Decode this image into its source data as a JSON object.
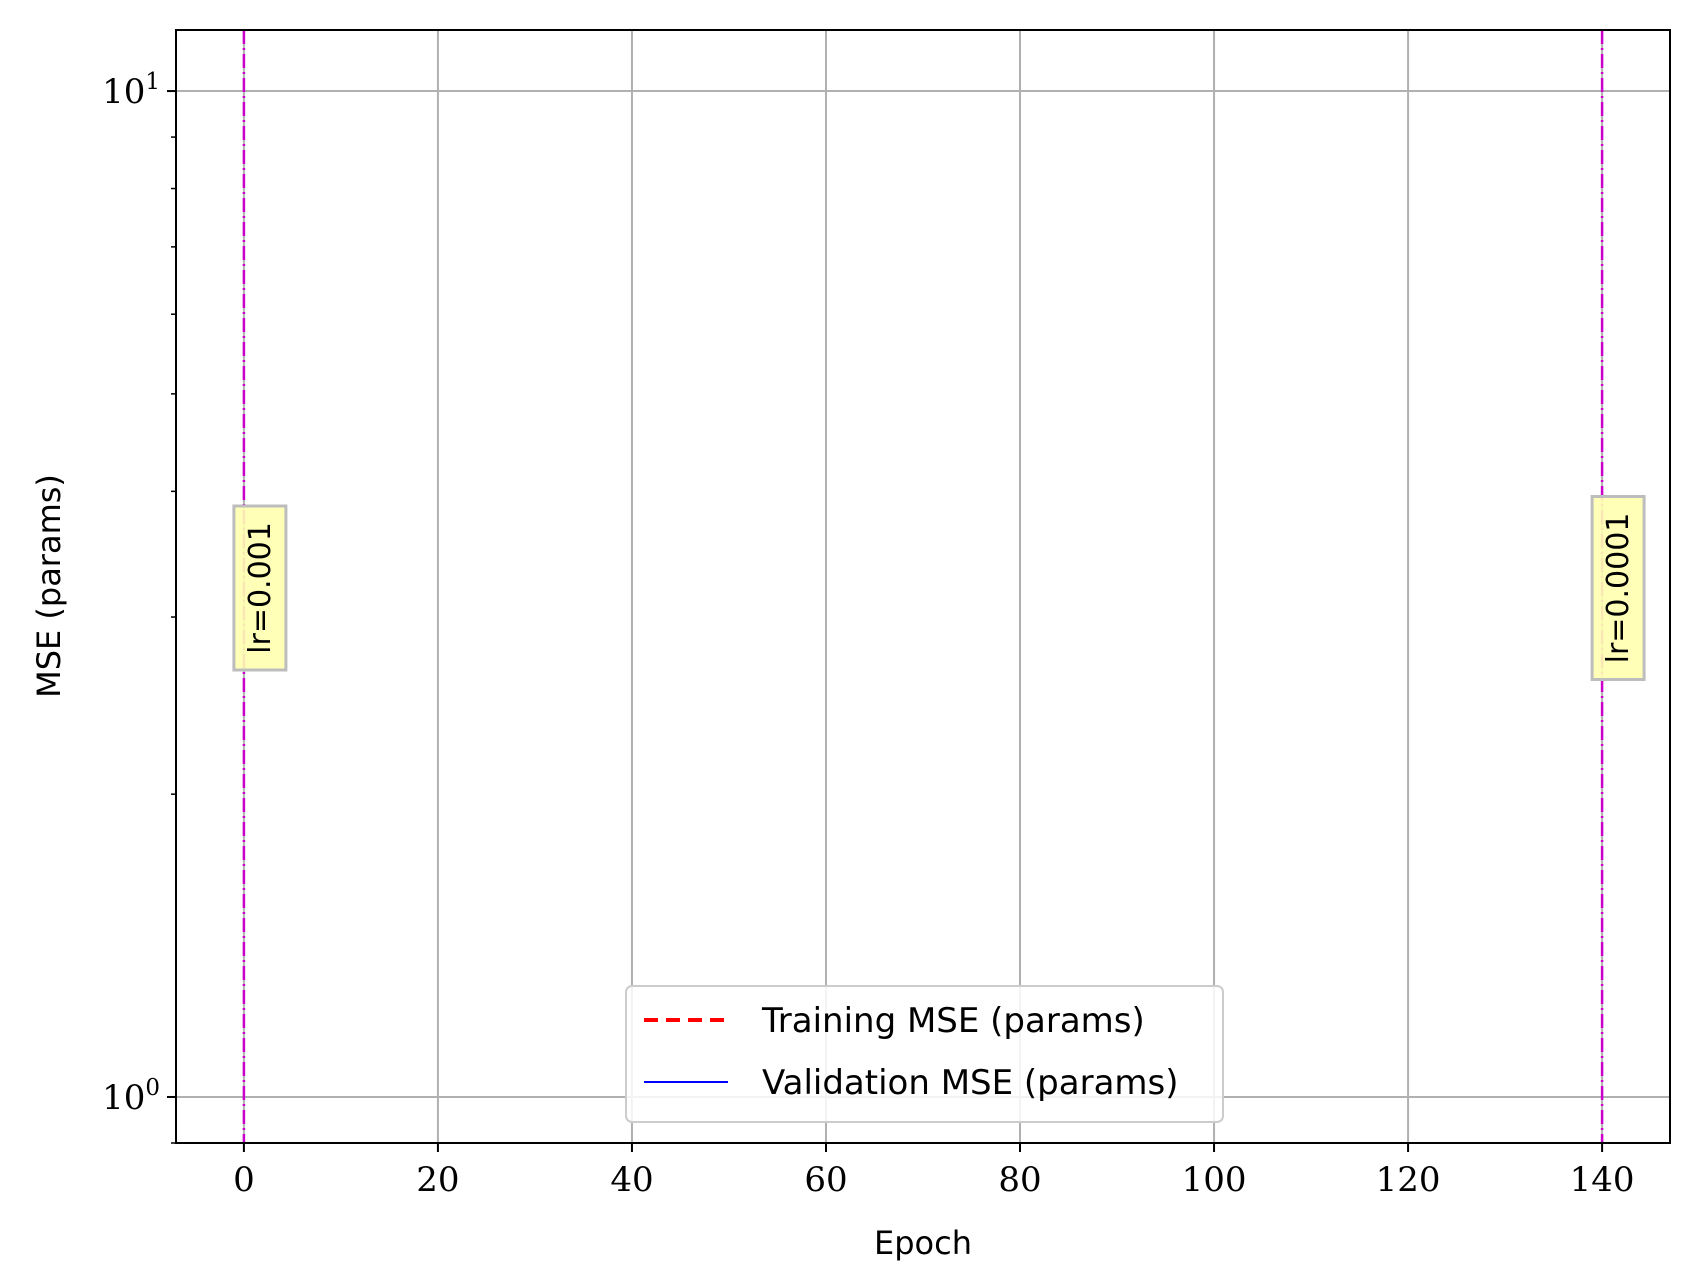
{
  "chart_data": {
    "type": "line",
    "xlabel": "Epoch",
    "ylabel": "MSE (params)",
    "xlim": [
      -7,
      147
    ],
    "ylim": [
      0.9,
      11.5
    ],
    "yscale": "log",
    "xticks": [
      0,
      20,
      40,
      60,
      80,
      100,
      120,
      140
    ],
    "xtick_labels": [
      "0",
      "20",
      "40",
      "60",
      "80",
      "100",
      "120",
      "140"
    ],
    "yticks_major": [
      {
        "value": 1,
        "base": "10",
        "exp": "0"
      },
      {
        "value": 10,
        "base": "10",
        "exp": "1"
      }
    ],
    "grid": true,
    "series": [
      {
        "name": "Training MSE (params)",
        "color": "#ff0000",
        "style": "dashed",
        "x": [],
        "y": []
      },
      {
        "name": "Validation MSE (params)",
        "color": "#0000ff",
        "style": "solid",
        "x": [],
        "y": []
      }
    ],
    "lr_markers": [
      {
        "epoch": 0,
        "label": "lr=0.001",
        "color": "#cc00cc"
      },
      {
        "epoch": 140,
        "label": "lr=0.0001",
        "color": "#cc00cc"
      }
    ],
    "legend_position": "lower center"
  }
}
